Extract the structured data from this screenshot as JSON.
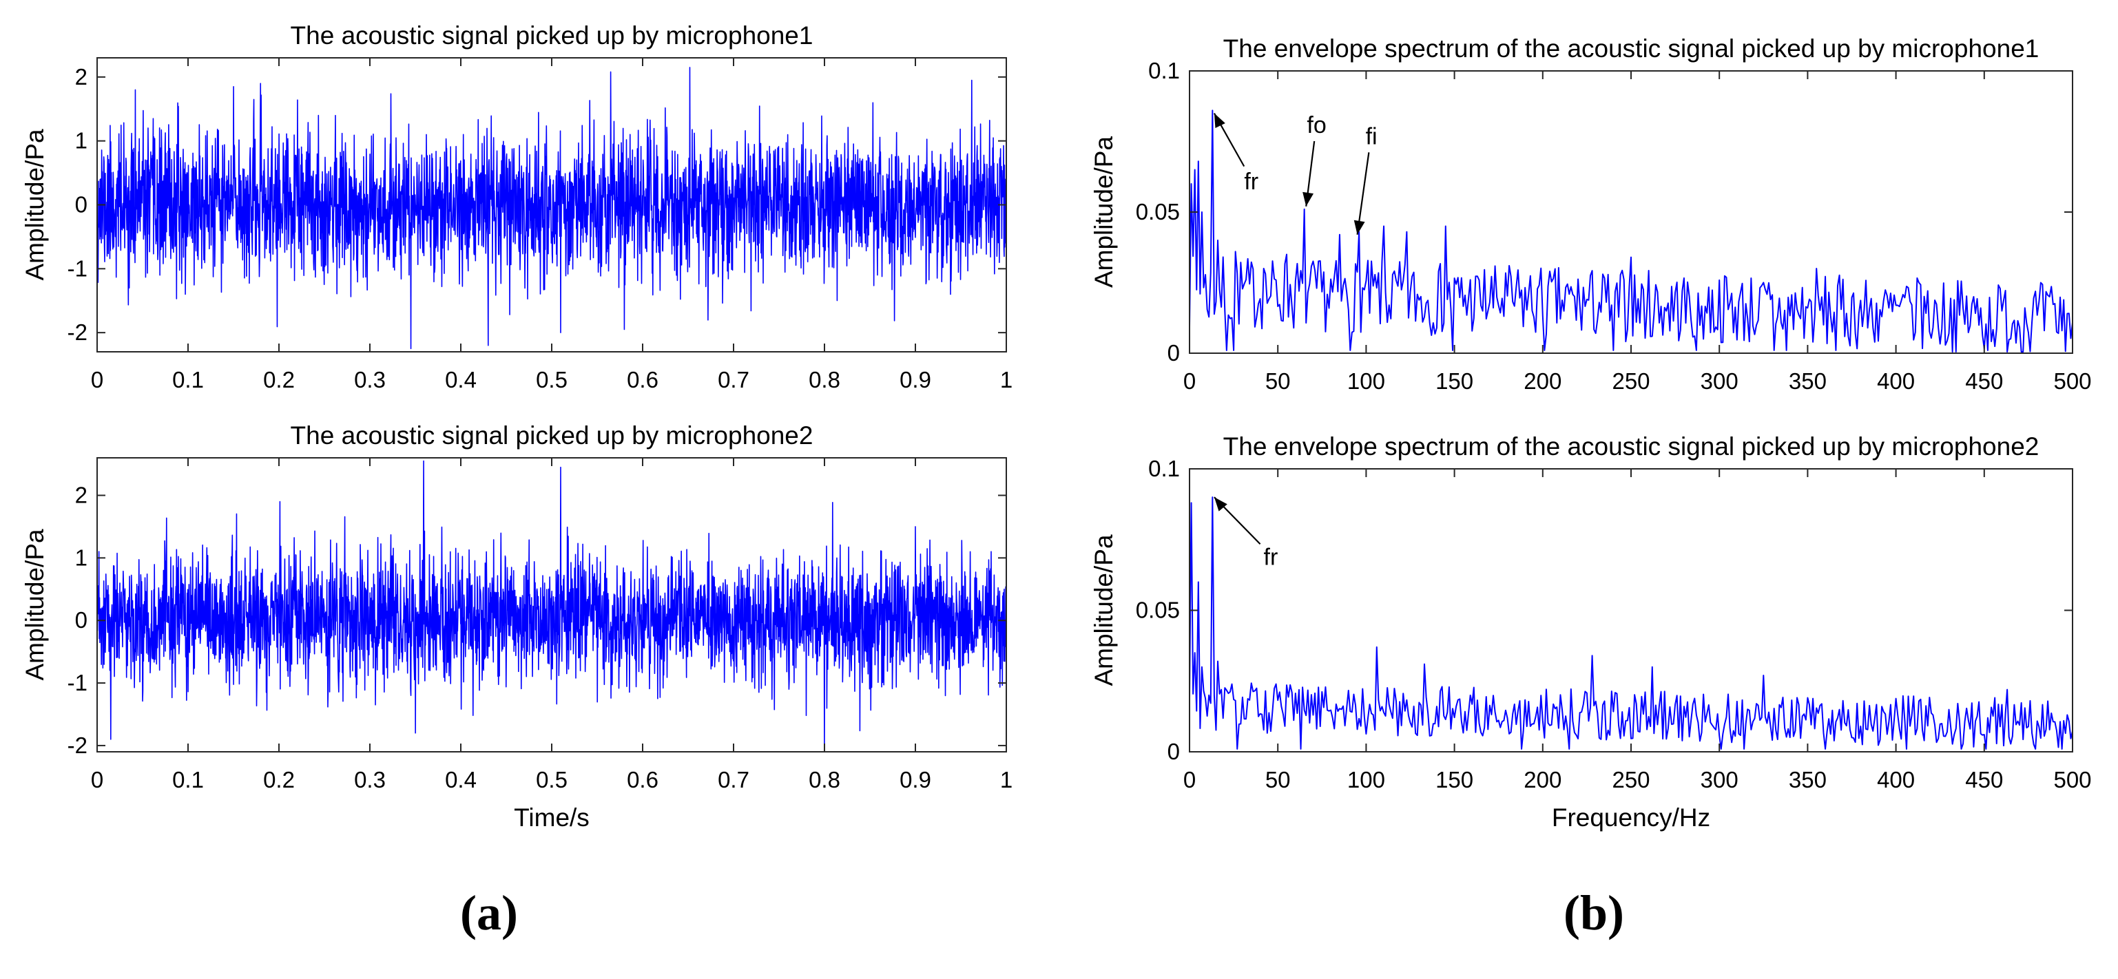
{
  "figure": {
    "caption_a": "(a)",
    "caption_b": "(b)"
  },
  "colors": {
    "signal": "#0000ff",
    "axis": "#262626",
    "text": "#000000",
    "background": "#ffffff"
  },
  "chart_data": [
    {
      "id": "mic1_time",
      "type": "line",
      "title": "The acoustic signal picked up by microphone1",
      "xlabel": "",
      "ylabel": "Amplitude/Pa",
      "xlim": [
        0,
        1
      ],
      "ylim": [
        -2.3,
        2.3
      ],
      "xticks": [
        0,
        0.1,
        0.2,
        0.3,
        0.4,
        0.5,
        0.6,
        0.7,
        0.8,
        0.9,
        1
      ],
      "xtick_labels": [
        "0",
        "0.1",
        "0.2",
        "0.3",
        "0.4",
        "0.5",
        "0.6",
        "0.7",
        "0.8",
        "0.9",
        "1"
      ],
      "yticks": [
        -2,
        -1,
        0,
        1,
        2
      ],
      "ytick_labels": [
        "-2",
        "-1",
        "0",
        "1",
        "2"
      ],
      "series": [
        {
          "name": "microphone1",
          "kind": "noise",
          "n": 3000,
          "seed": 11,
          "std": 0.55,
          "min": -2.25,
          "max": 2.15,
          "spikes": [
            [
              0.15,
              1.85
            ],
            [
              0.345,
              -2.25
            ],
            [
              0.43,
              -2.2
            ],
            [
              0.565,
              2.08
            ],
            [
              0.652,
              2.15
            ],
            [
              0.51,
              -2.0
            ],
            [
              0.58,
              -1.95
            ],
            [
              0.962,
              1.95
            ],
            [
              0.042,
              1.8
            ]
          ]
        }
      ],
      "annotations": []
    },
    {
      "id": "mic2_time",
      "type": "line",
      "title": "The acoustic signal picked up by microphone2",
      "xlabel": "Time/s",
      "ylabel": "Amplitude/Pa",
      "xlim": [
        0,
        1
      ],
      "ylim": [
        -2.1,
        2.6
      ],
      "xticks": [
        0,
        0.1,
        0.2,
        0.3,
        0.4,
        0.5,
        0.6,
        0.7,
        0.8,
        0.9,
        1
      ],
      "xtick_labels": [
        "0",
        "0.1",
        "0.2",
        "0.3",
        "0.4",
        "0.5",
        "0.6",
        "0.7",
        "0.8",
        "0.9",
        "1"
      ],
      "yticks": [
        -2,
        -1,
        0,
        1,
        2
      ],
      "ytick_labels": [
        "-2",
        "-1",
        "0",
        "1",
        "2"
      ],
      "series": [
        {
          "name": "microphone2",
          "kind": "noise",
          "n": 3000,
          "seed": 23,
          "std": 0.5,
          "min": -2.1,
          "max": 2.55,
          "spikes": [
            [
              0.359,
              2.55
            ],
            [
              0.51,
              2.45
            ],
            [
              0.201,
              1.9
            ],
            [
              0.8,
              -2.1
            ],
            [
              0.35,
              -1.8
            ],
            [
              0.015,
              -1.9
            ],
            [
              0.9,
              1.5
            ]
          ]
        }
      ],
      "annotations": []
    },
    {
      "id": "mic1_env",
      "type": "line",
      "title": "The envelope spectrum of the acoustic signal picked up by microphone1",
      "xlabel": "",
      "ylabel": "Amplitude/Pa",
      "xlim": [
        0,
        500
      ],
      "ylim": [
        0,
        0.1
      ],
      "xticks": [
        0,
        50,
        100,
        150,
        200,
        250,
        300,
        350,
        400,
        450,
        500
      ],
      "xtick_labels": [
        "0",
        "50",
        "100",
        "150",
        "200",
        "250",
        "300",
        "350",
        "400",
        "450",
        "500"
      ],
      "yticks": [
        0,
        0.05,
        0.1
      ],
      "ytick_labels": [
        "0",
        "0.05",
        "0.1"
      ],
      "series": [
        {
          "name": "envelope spectrum mic1",
          "kind": "spectrum",
          "n": 500,
          "seed": 7,
          "base_start": 0.022,
          "base_end": 0.012,
          "spread": 0.013,
          "peaks": [
            [
              1,
              0.06
            ],
            [
              3,
              0.065
            ],
            [
              5,
              0.068
            ],
            [
              7,
              0.05
            ],
            [
              13,
              0.086
            ],
            [
              16,
              0.04
            ],
            [
              26,
              0.036
            ],
            [
              42,
              0.03
            ],
            [
              55,
              0.035
            ],
            [
              65,
              0.051
            ],
            [
              85,
              0.042
            ],
            [
              96,
              0.043
            ],
            [
              110,
              0.045
            ],
            [
              123,
              0.043
            ],
            [
              145,
              0.045
            ],
            [
              250,
              0.034
            ],
            [
              355,
              0.03
            ],
            [
              413,
              0.025
            ]
          ]
        }
      ],
      "annotations": [
        {
          "label": "fr",
          "x": 14,
          "y": 0.085,
          "text_x": 35,
          "text_y": 0.058
        },
        {
          "label": "fo",
          "x": 66,
          "y": 0.052,
          "text_x": 72,
          "text_y": 0.078
        },
        {
          "label": "fi",
          "x": 95,
          "y": 0.042,
          "text_x": 103,
          "text_y": 0.074
        }
      ]
    },
    {
      "id": "mic2_env",
      "type": "line",
      "title": "The envelope spectrum of the acoustic signal picked up by microphone2",
      "xlabel": "Frequency/Hz",
      "ylabel": "Amplitude/Pa",
      "xlim": [
        0,
        500
      ],
      "ylim": [
        0,
        0.1
      ],
      "xticks": [
        0,
        50,
        100,
        150,
        200,
        250,
        300,
        350,
        400,
        450,
        500
      ],
      "xtick_labels": [
        "0",
        "50",
        "100",
        "150",
        "200",
        "250",
        "300",
        "350",
        "400",
        "450",
        "500"
      ],
      "yticks": [
        0,
        0.05,
        0.1
      ],
      "ytick_labels": [
        "0",
        "0.05",
        "0.1"
      ],
      "series": [
        {
          "name": "envelope spectrum mic2",
          "kind": "spectrum",
          "n": 500,
          "seed": 31,
          "base_start": 0.016,
          "base_end": 0.01,
          "spread": 0.009,
          "peaks": [
            [
              1,
              0.088
            ],
            [
              3,
              0.035
            ],
            [
              5,
              0.06
            ],
            [
              7,
              0.03
            ],
            [
              13,
              0.09
            ],
            [
              16,
              0.032
            ],
            [
              106,
              0.037
            ],
            [
              133,
              0.031
            ],
            [
              228,
              0.034
            ],
            [
              262,
              0.03
            ],
            [
              325,
              0.027
            ],
            [
              463,
              0.022
            ]
          ]
        }
      ],
      "annotations": [
        {
          "label": "fr",
          "x": 14,
          "y": 0.09,
          "text_x": 46,
          "text_y": 0.066
        }
      ]
    }
  ]
}
